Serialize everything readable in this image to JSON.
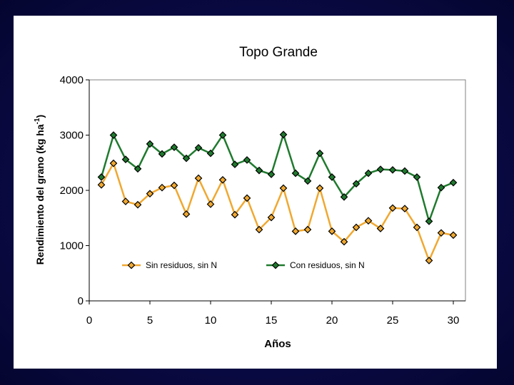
{
  "chart_data": {
    "type": "line",
    "title": "Topo Grande",
    "xlabel": "Años",
    "ylabel": "Rendimiento del grano (kg ha-1)",
    "ylabel_main": "Rendimiento del grano (kg ha",
    "ylabel_sup": "-1",
    "ylabel_end": ")",
    "xlim": [
      0,
      31
    ],
    "ylim": [
      0,
      4000
    ],
    "xticks": [
      0,
      5,
      10,
      15,
      20,
      25,
      30
    ],
    "yticks": [
      0,
      1000,
      2000,
      3000,
      4000
    ],
    "grid": false,
    "legend_position": "inside-bottom",
    "x": [
      1,
      2,
      3,
      4,
      5,
      6,
      7,
      8,
      9,
      10,
      11,
      12,
      13,
      14,
      15,
      16,
      17,
      18,
      19,
      20,
      21,
      22,
      23,
      24,
      25,
      26,
      27,
      28,
      29,
      30
    ],
    "series": [
      {
        "name": "Sin residuos, sin N",
        "color": "#f0a830",
        "marker": "diamond",
        "values": [
          2100,
          2490,
          1800,
          1740,
          1940,
          2050,
          2090,
          1570,
          2220,
          1750,
          2190,
          1560,
          1860,
          1290,
          1510,
          2040,
          1260,
          1290,
          2040,
          1260,
          1070,
          1330,
          1450,
          1310,
          1680,
          1670,
          1330,
          730,
          1230,
          1190
        ]
      },
      {
        "name": "Con residuos, sin N",
        "color": "#1f7a2e",
        "marker": "diamond",
        "values": [
          2240,
          3000,
          2560,
          2390,
          2840,
          2660,
          2780,
          2580,
          2770,
          2670,
          3000,
          2470,
          2550,
          2360,
          2290,
          3010,
          2310,
          2170,
          2670,
          2240,
          1880,
          2120,
          2310,
          2380,
          2370,
          2350,
          2240,
          1440,
          2050,
          2140
        ]
      }
    ]
  }
}
